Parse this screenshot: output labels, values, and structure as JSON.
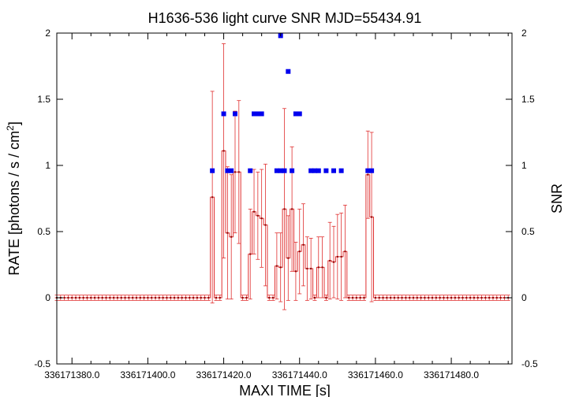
{
  "chart_data": {
    "type": "line",
    "title": "H1636-536 light curve  SNR MJD=55434.91",
    "xlabel": "MAXI TIME [s]",
    "ylabel_left_prefix": "RATE [photons / s / cm",
    "ylabel_left_sup": "2",
    "ylabel_left_suffix": "]",
    "ylabel_right": "SNR",
    "xlim": [
      336171376,
      336171496
    ],
    "ylim": [
      -0.5,
      2.0
    ],
    "y2lim": [
      -0.5,
      2.0
    ],
    "x_ticks": [
      {
        "value": 336171380,
        "label": "336171380.0"
      },
      {
        "value": 336171400,
        "label": "336171400.0"
      },
      {
        "value": 336171420,
        "label": "336171420.0"
      },
      {
        "value": 336171440,
        "label": "336171440.0"
      },
      {
        "value": 336171460,
        "label": "336171460.0"
      },
      {
        "value": 336171480,
        "label": "336171480.0"
      }
    ],
    "y_ticks": [
      {
        "value": -0.5,
        "label": "-0.5"
      },
      {
        "value": 0,
        "label": "0"
      },
      {
        "value": 0.5,
        "label": "0.5"
      },
      {
        "value": 1,
        "label": "1"
      },
      {
        "value": 1.5,
        "label": "1.5"
      },
      {
        "value": 2,
        "label": "2"
      }
    ],
    "y2_ticks": [
      {
        "value": -0.5,
        "label": "-0.5"
      },
      {
        "value": 0,
        "label": "0"
      },
      {
        "value": 0.5,
        "label": "0.5"
      },
      {
        "value": 1,
        "label": "1"
      },
      {
        "value": 1.5,
        "label": "1.5"
      },
      {
        "value": 2,
        "label": "2"
      }
    ],
    "rate_series": {
      "color": "#e03030",
      "x_start": 336171376,
      "x_step": 1,
      "n_points": 120,
      "zero_error": 0.02,
      "nonzero_points": [
        {
          "x": 336171417,
          "y": 0.76,
          "err": 0.8
        },
        {
          "x": 336171420,
          "y": 1.11,
          "err": 0.81
        },
        {
          "x": 336171421,
          "y": 0.49,
          "err": 0.5
        },
        {
          "x": 336171422,
          "y": 0.46,
          "err": 0.47
        },
        {
          "x": 336171423,
          "y": 0.95,
          "err": 0.46
        },
        {
          "x": 336171424,
          "y": 0.95,
          "err": 0.54
        },
        {
          "x": 336171427,
          "y": 0.33,
          "err": 0.34
        },
        {
          "x": 336171428,
          "y": 0.65,
          "err": 0.32
        },
        {
          "x": 336171429,
          "y": 0.62,
          "err": 0.33
        },
        {
          "x": 336171430,
          "y": 0.6,
          "err": 0.37
        },
        {
          "x": 336171431,
          "y": 0.55,
          "err": 0.46
        },
        {
          "x": 336171434,
          "y": 0.24,
          "err": 0.25
        },
        {
          "x": 336171435,
          "y": 0.23,
          "err": 0.26
        },
        {
          "x": 336171436,
          "y": 0.67,
          "err": 0.76
        },
        {
          "x": 336171437,
          "y": 0.3,
          "err": 0.32
        },
        {
          "x": 336171438,
          "y": 0.67,
          "err": 0.47
        },
        {
          "x": 336171439,
          "y": 0.2,
          "err": 0.22
        },
        {
          "x": 336171440,
          "y": 0.35,
          "err": 0.32
        },
        {
          "x": 336171441,
          "y": 0.4,
          "err": 0.31
        },
        {
          "x": 336171442,
          "y": 0.22,
          "err": 0.24
        },
        {
          "x": 336171443,
          "y": 0.22,
          "err": 0.23
        },
        {
          "x": 336171445,
          "y": 0.23,
          "err": 0.23
        },
        {
          "x": 336171446,
          "y": 0.23,
          "err": 0.23
        },
        {
          "x": 336171448,
          "y": 0.28,
          "err": 0.29
        },
        {
          "x": 336171449,
          "y": 0.27,
          "err": 0.27
        },
        {
          "x": 336171450,
          "y": 0.31,
          "err": 0.32
        },
        {
          "x": 336171451,
          "y": 0.31,
          "err": 0.33
        },
        {
          "x": 336171452,
          "y": 0.35,
          "err": 0.35
        },
        {
          "x": 336171458,
          "y": 0.93,
          "err": 0.33
        },
        {
          "x": 336171459,
          "y": 0.61,
          "err": 0.64
        }
      ]
    },
    "snr_series": {
      "color": "#0000ee",
      "points": [
        {
          "x": 336171417,
          "y": 0.96
        },
        {
          "x": 336171420,
          "y": 1.39
        },
        {
          "x": 336171421,
          "y": 0.96
        },
        {
          "x": 336171422,
          "y": 0.96
        },
        {
          "x": 336171423,
          "y": 1.39
        },
        {
          "x": 336171427,
          "y": 0.96
        },
        {
          "x": 336171428,
          "y": 1.39
        },
        {
          "x": 336171429,
          "y": 1.39
        },
        {
          "x": 336171430,
          "y": 1.39
        },
        {
          "x": 336171434,
          "y": 0.96
        },
        {
          "x": 336171435,
          "y": 0.96
        },
        {
          "x": 336171435,
          "y": 1.98
        },
        {
          "x": 336171436,
          "y": 0.96
        },
        {
          "x": 336171437,
          "y": 1.71
        },
        {
          "x": 336171438,
          "y": 0.96
        },
        {
          "x": 336171439,
          "y": 1.39
        },
        {
          "x": 336171440,
          "y": 1.39
        },
        {
          "x": 336171443,
          "y": 0.96
        },
        {
          "x": 336171444,
          "y": 0.96
        },
        {
          "x": 336171445,
          "y": 0.96
        },
        {
          "x": 336171447,
          "y": 0.96
        },
        {
          "x": 336171449,
          "y": 0.96
        },
        {
          "x": 336171451,
          "y": 0.96
        },
        {
          "x": 336171458,
          "y": 0.96
        },
        {
          "x": 336171459,
          "y": 0.96
        }
      ]
    }
  }
}
